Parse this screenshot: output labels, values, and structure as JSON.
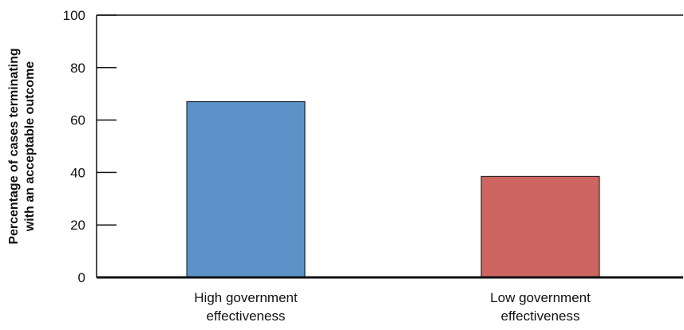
{
  "chart_data": {
    "type": "bar",
    "categories": [
      [
        "High government",
        "effectiveness"
      ],
      [
        "Low government",
        "effectiveness"
      ]
    ],
    "values": [
      67,
      38.5
    ],
    "colors": [
      "#5b93c9",
      "#cd6660"
    ],
    "ylabel": [
      "Percentage of cases terminating",
      "with an acceptable outcome"
    ],
    "xlabel": "",
    "title": "",
    "ylim": [
      0,
      100
    ],
    "yticks": [
      0,
      20,
      40,
      60,
      80,
      100
    ],
    "grid": false,
    "legend": "none"
  }
}
